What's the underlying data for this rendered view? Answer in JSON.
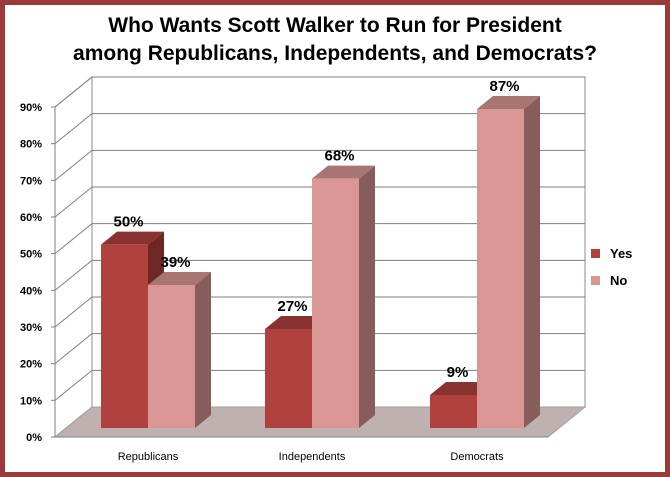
{
  "chart_data": {
    "type": "bar",
    "title": [
      "Who Wants Scott Walker to Run for President",
      "among Republicans, Independents, and Democrats?"
    ],
    "categories": [
      "Republicans",
      "Independents",
      "Democrats"
    ],
    "series": [
      {
        "name": "Yes",
        "values": [
          50,
          27,
          9
        ],
        "labels": [
          "50%",
          "27%",
          "9%"
        ],
        "color": "#b0413e"
      },
      {
        "name": "No",
        "values": [
          39,
          68,
          87
        ],
        "labels": [
          "39%",
          "68%",
          "87%"
        ],
        "color": "#d99694"
      }
    ],
    "yticks": [
      "0%",
      "10%",
      "20%",
      "30%",
      "40%",
      "50%",
      "60%",
      "70%",
      "80%",
      "90%"
    ],
    "ylim": [
      0,
      90
    ],
    "grid": true,
    "legend": "right",
    "style": "3d-column"
  }
}
